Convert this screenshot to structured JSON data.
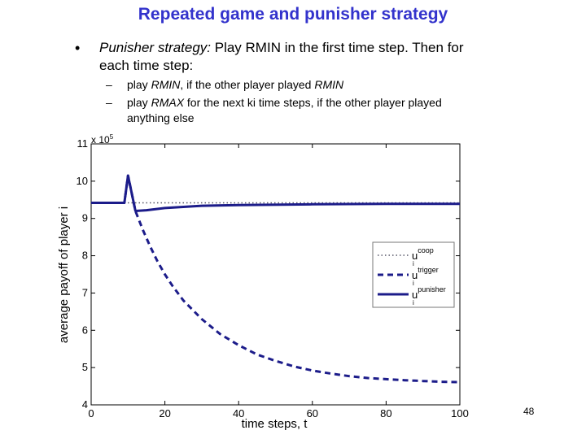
{
  "slide": {
    "title": "Repeated game and punisher strategy",
    "bullet": {
      "lead": "Punisher strategy:",
      "text": " Play RMIN in the first time step. Then for each time step:"
    },
    "subbullets": [
      {
        "dash": "–",
        "pre": "play ",
        "em": "RMIN",
        "mid": ", if the other player played ",
        "em2": "RMIN",
        "post": ""
      },
      {
        "dash": "–",
        "pre": "play ",
        "em": "RMAX",
        "mid": " for the next ki time steps, if the other player played anything else",
        "em2": "",
        "post": ""
      }
    ],
    "page_number": "48"
  },
  "chart_data": {
    "type": "line",
    "xlabel": "time steps, t",
    "ylabel": "average payoff of player i",
    "exponent_label": "x 10",
    "exponent_power": "5",
    "xlim": [
      0,
      100
    ],
    "ylim": [
      4,
      11
    ],
    "xticks": [
      "0",
      "20",
      "40",
      "60",
      "80",
      "100"
    ],
    "yticks": [
      "4",
      "5",
      "6",
      "7",
      "8",
      "9",
      "10",
      "11"
    ],
    "legend_position": "center-right",
    "colors": {
      "line": "#1c1c8a",
      "coop": "#555566"
    },
    "series": [
      {
        "legend": "u",
        "sup": "coop",
        "sub": "i",
        "style": "dotted",
        "points": [
          [
            0,
            9.42
          ],
          [
            100,
            9.42
          ]
        ]
      },
      {
        "legend": "u",
        "sup": "trigger",
        "sub": "i",
        "style": "dashed",
        "points": [
          [
            0,
            9.42
          ],
          [
            9,
            9.42
          ],
          [
            10,
            10.15
          ],
          [
            12,
            9.2
          ],
          [
            14,
            8.7
          ],
          [
            16,
            8.25
          ],
          [
            18,
            7.85
          ],
          [
            20,
            7.5
          ],
          [
            22,
            7.2
          ],
          [
            25,
            6.8
          ],
          [
            30,
            6.3
          ],
          [
            35,
            5.9
          ],
          [
            40,
            5.6
          ],
          [
            45,
            5.35
          ],
          [
            50,
            5.18
          ],
          [
            55,
            5.03
          ],
          [
            60,
            4.92
          ],
          [
            65,
            4.84
          ],
          [
            70,
            4.77
          ],
          [
            75,
            4.72
          ],
          [
            80,
            4.69
          ],
          [
            85,
            4.66
          ],
          [
            90,
            4.64
          ],
          [
            95,
            4.62
          ],
          [
            100,
            4.61
          ]
        ]
      },
      {
        "legend": "u",
        "sup": "punisher",
        "sub": "i",
        "style": "solid",
        "points": [
          [
            0,
            9.42
          ],
          [
            9,
            9.42
          ],
          [
            10,
            10.15
          ],
          [
            12,
            9.2
          ],
          [
            15,
            9.22
          ],
          [
            20,
            9.28
          ],
          [
            30,
            9.34
          ],
          [
            40,
            9.36
          ],
          [
            60,
            9.38
          ],
          [
            80,
            9.39
          ],
          [
            100,
            9.39
          ]
        ]
      }
    ]
  }
}
